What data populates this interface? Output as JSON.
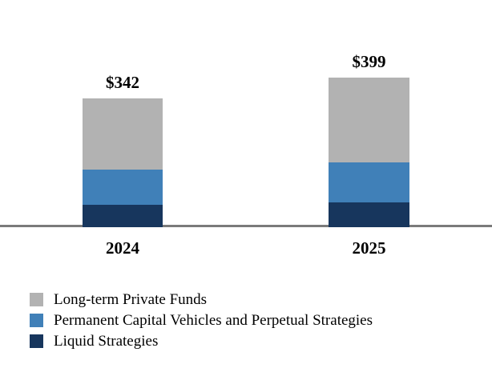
{
  "chart_data": {
    "type": "bar",
    "stacked": true,
    "title": "",
    "xlabel": "",
    "ylabel": "",
    "categories": [
      "2024",
      "2025"
    ],
    "series": [
      {
        "name": "Liquid Strategies",
        "color": "#17365d",
        "values": [
          60,
          66
        ]
      },
      {
        "name": "Permanent Capital Vehicles and Perpetual Strategies",
        "color": "#4080b8",
        "values": [
          94,
          106
        ]
      },
      {
        "name": "Long-term Private Funds",
        "color": "#b2b2b2",
        "values": [
          188,
          227
        ]
      }
    ],
    "totals": [
      342,
      399
    ],
    "total_labels": [
      "$342",
      "$399"
    ],
    "legend": [
      {
        "label": "Long-term Private Funds",
        "color": "#b2b2b2"
      },
      {
        "label": "Permanent Capital Vehicles and Perpetual Strategies",
        "color": "#4080b8"
      },
      {
        "label": "Liquid Strategies",
        "color": "#17365d"
      }
    ],
    "axis": {
      "baseline_color": "#7b7b7b",
      "grid": false,
      "legend_position": "bottom-left",
      "value_axis_visible": false
    }
  }
}
